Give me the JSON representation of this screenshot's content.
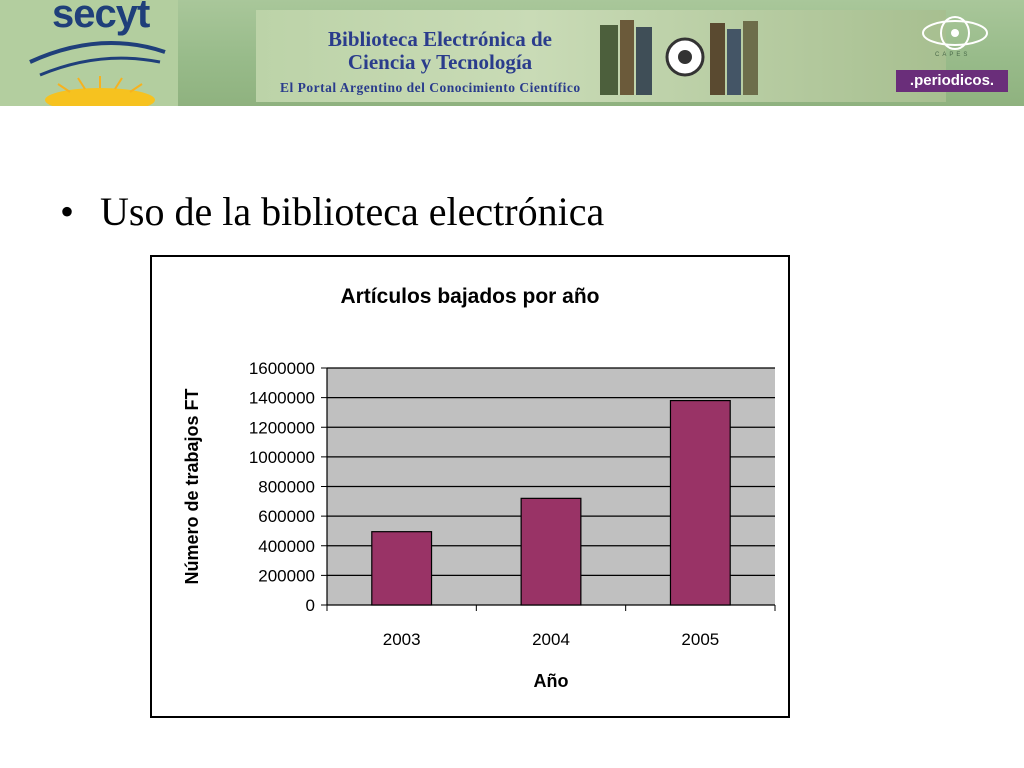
{
  "banner": {
    "logo": "secyt",
    "title_line1": "Biblioteca Electrónica de",
    "title_line2": "Ciencia y Tecnología",
    "subtitle": "El Portal Argentino del Conocimiento Científico",
    "capes": "CAPES",
    "periodicos": ".periodicos."
  },
  "slide": {
    "bullet": "Uso de la biblioteca electrónica"
  },
  "colors": {
    "bar": "#993366",
    "plot_bg": "#c0c0c0",
    "banner_text": "#2a3c8c"
  },
  "chart_data": {
    "type": "bar",
    "title": "Artículos bajados por año",
    "xlabel": "Año",
    "ylabel": "Número de trabajos FT",
    "categories": [
      "2003",
      "2004",
      "2005"
    ],
    "values": [
      495000,
      720000,
      1380000
    ],
    "ylim": [
      0,
      1600000
    ],
    "yticks": [
      "0",
      "200000",
      "400000",
      "600000",
      "800000",
      "1000000",
      "1200000",
      "1400000",
      "1600000"
    ],
    "grid": true,
    "legend": "none"
  }
}
